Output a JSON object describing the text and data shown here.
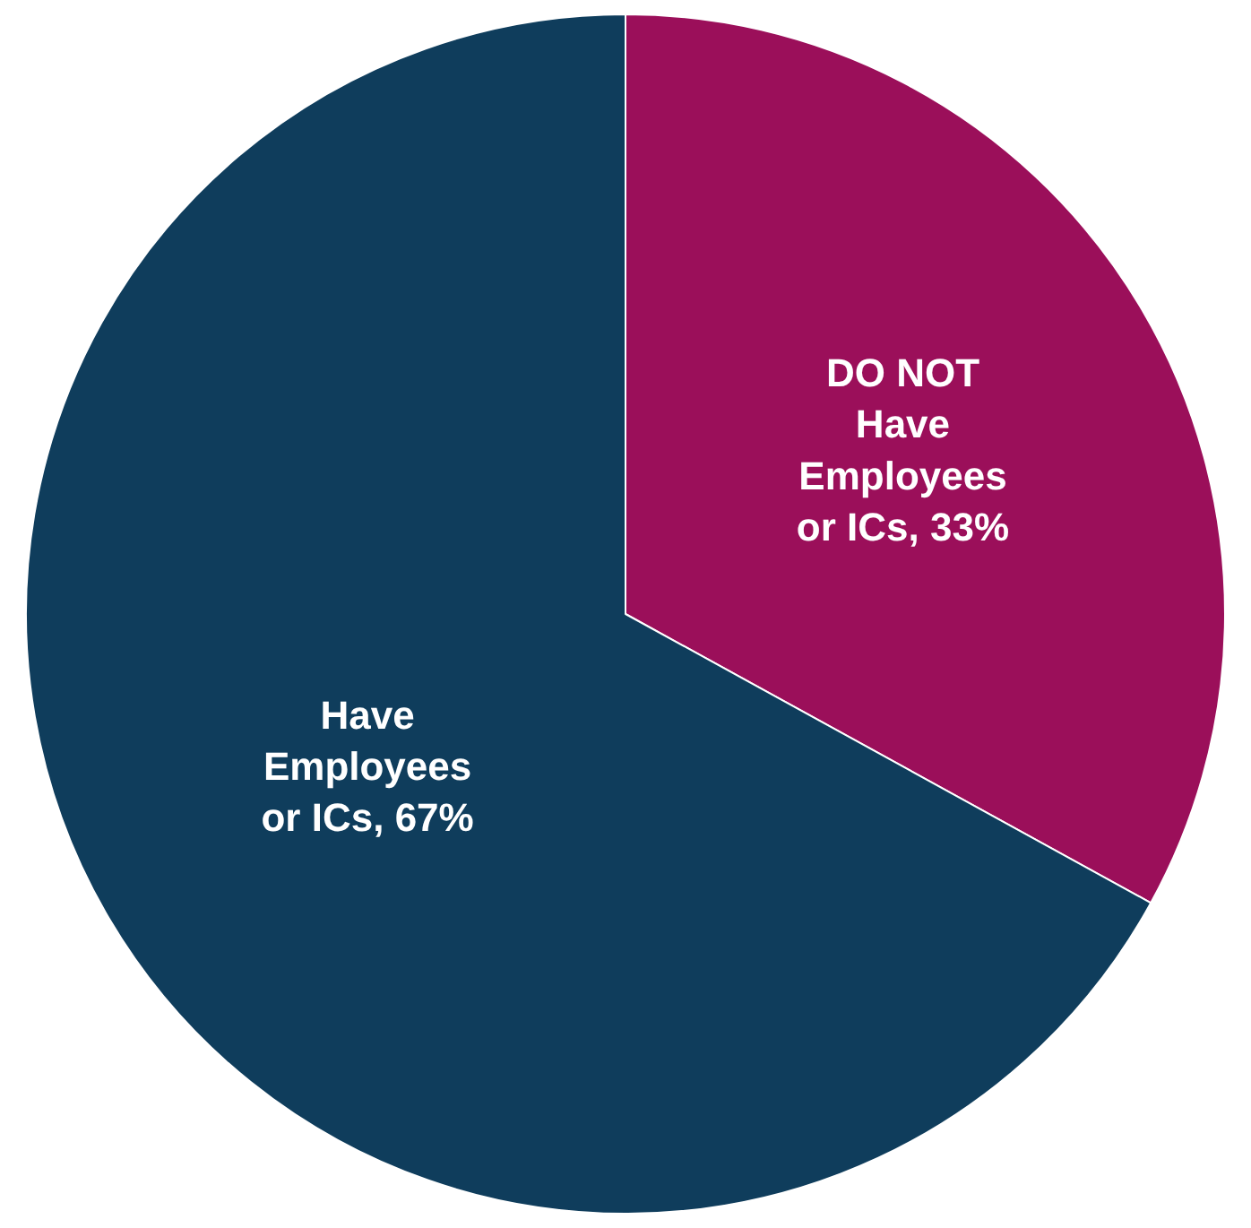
{
  "chart_data": {
    "type": "pie",
    "categories": [
      "DO NOT\nHave\nEmployees\nor ICs",
      "Have\nEmployees\nor ICs"
    ],
    "values": [
      33,
      67
    ],
    "value_labels": [
      "33%",
      "67%"
    ],
    "colors": [
      "#9b0f5a",
      "#0f3d5c"
    ],
    "legend": false
  }
}
